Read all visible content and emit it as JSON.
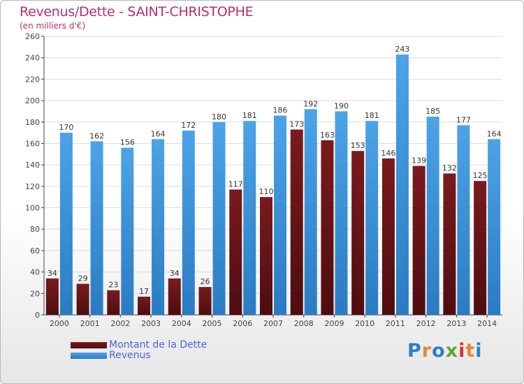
{
  "header": {
    "title": "Revenus/Dette - SAINT-CHRISTOPHE",
    "subtitle": "(en milliers d'€)"
  },
  "logo": {
    "letters": [
      "P",
      "r",
      "o",
      "x",
      "i",
      "t",
      "i"
    ]
  },
  "colors": {
    "debt": "#7a1a1e",
    "debt_dark": "#4e0d10",
    "revenue": "#4ca3e6",
    "revenue_dark": "#2a7cc2",
    "title": "#b4306a",
    "legend_text": "#4a63e0",
    "axis": "#444444"
  },
  "chart_data": {
    "type": "bar",
    "title": "Revenus/Dette - SAINT-CHRISTOPHE",
    "ylabel": "(en milliers d'€)",
    "xlabel": "",
    "categories": [
      "2000",
      "2001",
      "2002",
      "2003",
      "2004",
      "2005",
      "2006",
      "2007",
      "2008",
      "2009",
      "2010",
      "2011",
      "2012",
      "2013",
      "2014"
    ],
    "series": [
      {
        "name": "Montant de la Dette",
        "values": [
          34,
          29,
          23,
          17,
          34,
          26,
          117,
          110,
          173,
          163,
          153,
          146,
          139,
          132,
          125
        ]
      },
      {
        "name": "Revenus",
        "values": [
          170,
          162,
          156,
          164,
          172,
          180,
          181,
          186,
          192,
          190,
          181,
          243,
          185,
          177,
          164
        ]
      }
    ],
    "ylim": [
      0,
      260
    ],
    "yticks": [
      0,
      20,
      40,
      60,
      80,
      100,
      120,
      140,
      160,
      180,
      200,
      220,
      240,
      260
    ],
    "grid": true,
    "legend_position": "bottom-left"
  }
}
